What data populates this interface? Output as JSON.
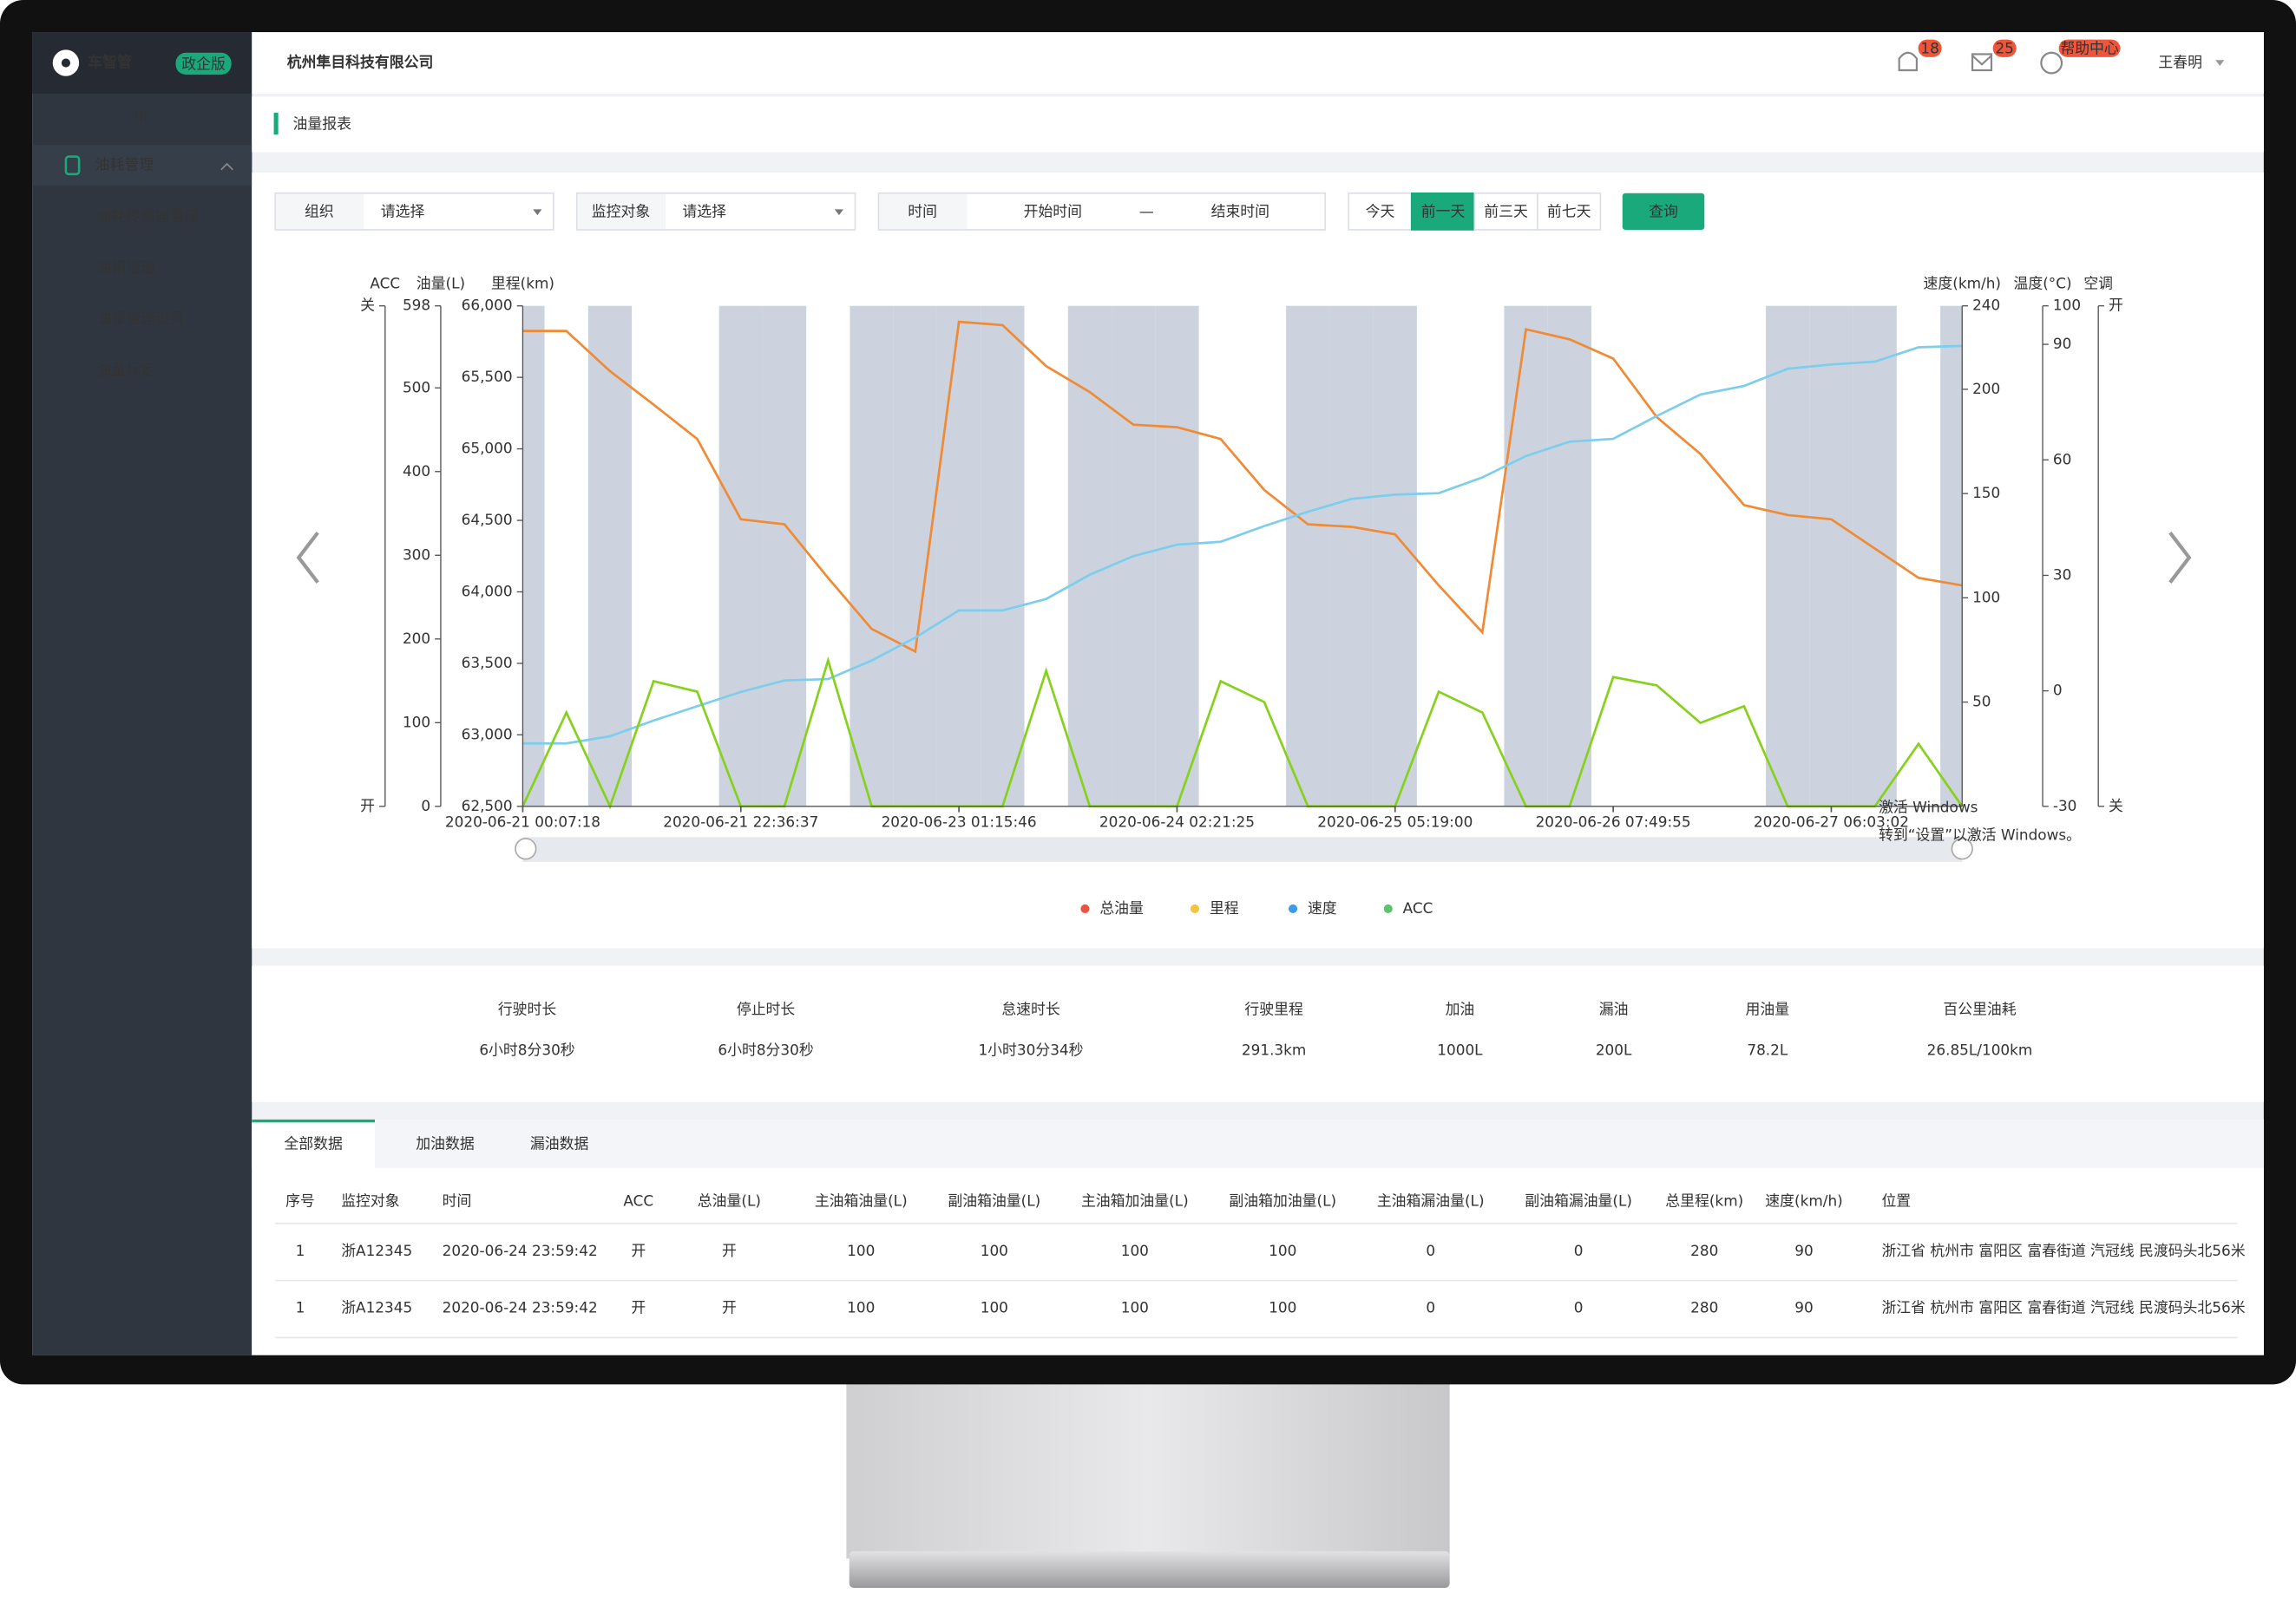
{
  "sidebar": {
    "logo": "车智管",
    "edition": "政企版",
    "menu_icon": "III",
    "group": "油耗管理",
    "items": [
      "油耗传感器管理",
      "油箱管理",
      "油量管理设置",
      "油量标定"
    ]
  },
  "header": {
    "company": "杭州隼目科技有限公司",
    "notifications": 18,
    "messages": 25,
    "help": "帮助中心",
    "user": "王春明"
  },
  "page_title": "油量报表",
  "filters": {
    "org_label": "组织",
    "org_placeholder": "请选择",
    "target_label": "监控对象",
    "target_placeholder": "请选择",
    "time_label": "时间",
    "start_placeholder": "开始时间",
    "separator": "—",
    "end_placeholder": "结束时间",
    "ranges": [
      "今天",
      "前一天",
      "前三天",
      "前七天"
    ],
    "active_range": 1,
    "query": "查询"
  },
  "chart": {
    "type": "line",
    "xlim": [
      0,
      33
    ],
    "xticks": [
      {
        "value": 0,
        "label": "2020-06-21 00:07:18"
      },
      {
        "value": 5,
        "label": "2020-06-21 22:36:37"
      },
      {
        "value": 10,
        "label": "2020-06-23 01:15:46"
      },
      {
        "value": 15,
        "label": "2020-06-24 02:21:25"
      },
      {
        "value": 20,
        "label": "2020-06-25 05:19:00"
      },
      {
        "value": 25,
        "label": "2020-06-26 07:49:55"
      },
      {
        "value": 30,
        "label": "2020-06-27 06:03:02"
      }
    ],
    "axes": {
      "acc": {
        "header": "ACC",
        "labels": [
          "关",
          "开"
        ]
      },
      "oil": {
        "header": "油量(L)",
        "ylim": [
          0,
          598
        ],
        "yticks": [
          0,
          100,
          200,
          300,
          400,
          500,
          598
        ]
      },
      "mileage": {
        "header": "里程(km)",
        "ylim": [
          62500,
          66000
        ],
        "yticks": [
          {
            "value": 62500,
            "label": "62,500"
          },
          {
            "value": 63000,
            "label": "63,000"
          },
          {
            "value": 63500,
            "label": "63,500"
          },
          {
            "value": 64000,
            "label": "64,000"
          },
          {
            "value": 64500,
            "label": "64,500"
          },
          {
            "value": 65000,
            "label": "65,000"
          },
          {
            "value": 65500,
            "label": "65,500"
          },
          {
            "value": 66000,
            "label": "66,000"
          }
        ]
      },
      "speed": {
        "header": "速度(km/h)",
        "ylim": [
          0,
          240
        ],
        "yticks": [
          50,
          100,
          150,
          200,
          240
        ]
      },
      "temp": {
        "header": "温度(°C)",
        "ylim": [
          -30,
          100
        ],
        "yticks": [
          -30,
          0,
          30,
          60,
          90,
          100
        ]
      },
      "ac": {
        "header": "空调",
        "labels": [
          "开",
          "关"
        ]
      }
    },
    "series": [
      {
        "name": "总油量",
        "color": "#f08a35",
        "legend_color": "#e8553e",
        "axis": "oil",
        "values": [
          568,
          568,
          520,
          480,
          439,
          343,
          337,
          273,
          212,
          185,
          579,
          575,
          526,
          495,
          456,
          453,
          439,
          378,
          337,
          334,
          325,
          264,
          208,
          570,
          558,
          535,
          465,
          421,
          360,
          348,
          343,
          308,
          273,
          264
        ]
      },
      {
        "name": "里程",
        "color": "#7dcdec",
        "legend_color": "#f5c342",
        "axis": "mileage",
        "values": [
          62940,
          62940,
          62990,
          63100,
          63200,
          63300,
          63380,
          63390,
          63520,
          63680,
          63870,
          63870,
          63950,
          64120,
          64250,
          64330,
          64350,
          64460,
          64560,
          64650,
          64680,
          64690,
          64800,
          64950,
          65050,
          65070,
          65230,
          65380,
          65440,
          65560,
          65590,
          65610,
          65710,
          65720
        ]
      },
      {
        "name": "速度",
        "color": "#86d11c",
        "legend_color": "#3d9be9",
        "axis": "speed",
        "values": [
          0,
          45,
          0,
          60,
          55,
          0,
          0,
          70,
          0,
          0,
          0,
          0,
          65,
          0,
          0,
          0,
          60,
          50,
          0,
          0,
          0,
          55,
          45,
          0,
          0,
          62,
          58,
          40,
          48,
          0,
          0,
          0,
          30,
          0
        ]
      },
      {
        "name": "ACC",
        "color": "#c3cbd9",
        "legend_color": "#5cc46a",
        "axis": "acc",
        "values": [
          1,
          0,
          1,
          0,
          0,
          1,
          1,
          0,
          1,
          1,
          1,
          1,
          0,
          1,
          1,
          1,
          0,
          0,
          1,
          1,
          1,
          0,
          0,
          1,
          1,
          0,
          0,
          0,
          0,
          1,
          1,
          1,
          0,
          1
        ]
      }
    ]
  },
  "stats": [
    {
      "label": "行驶时长",
      "value": "6小时8分30秒"
    },
    {
      "label": "停止时长",
      "value": "6小时8分30秒"
    },
    {
      "label": "怠速时长",
      "value": "1小时30分34秒"
    },
    {
      "label": "行驶里程",
      "value": "291.3km"
    },
    {
      "label": "加油",
      "value": "1000L"
    },
    {
      "label": "漏油",
      "value": "200L"
    },
    {
      "label": "用油量",
      "value": "78.2L"
    },
    {
      "label": "百公里油耗",
      "value": "26.85L/100km"
    }
  ],
  "tabs": [
    "全部数据",
    "加油数据",
    "漏油数据"
  ],
  "active_tab": 0,
  "table": {
    "columns": [
      "序号",
      "监控对象",
      "时间",
      "ACC",
      "总油量(L)",
      "主油箱油量(L)",
      "副油箱油量(L)",
      "主油箱加油量(L)",
      "副油箱加油量(L)",
      "主油箱漏油量(L)",
      "副油箱漏油量(L)",
      "总里程(km)",
      "速度(km/h)",
      "位置"
    ],
    "rows": [
      [
        1,
        "浙A12345",
        "2020-06-24 23:59:42",
        "开",
        "开",
        100,
        100,
        100,
        100,
        0,
        0,
        280,
        90,
        "浙江省 杭州市 富阳区 富春街道 汽冠线 民渡码头北56米"
      ],
      [
        1,
        "浙A12345",
        "2020-06-24 23:59:42",
        "开",
        "开",
        100,
        100,
        100,
        100,
        0,
        0,
        280,
        90,
        "浙江省 杭州市 富阳区 富春街道 汽冠线 民渡码头北56米"
      ]
    ]
  },
  "watermark": [
    "激活 Windows",
    "转到“设置”以激活 Windows。"
  ]
}
